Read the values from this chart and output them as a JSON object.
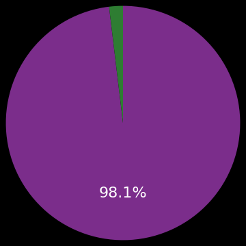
{
  "values": [
    98.1,
    1.9
  ],
  "colors": [
    "#7b2d8b",
    "#2e7d32"
  ],
  "label": "98.1%",
  "label_color": "#ffffff",
  "label_fontsize": 16,
  "background_color": "#000000",
  "startangle": 90,
  "wedge_edge_color": "none"
}
